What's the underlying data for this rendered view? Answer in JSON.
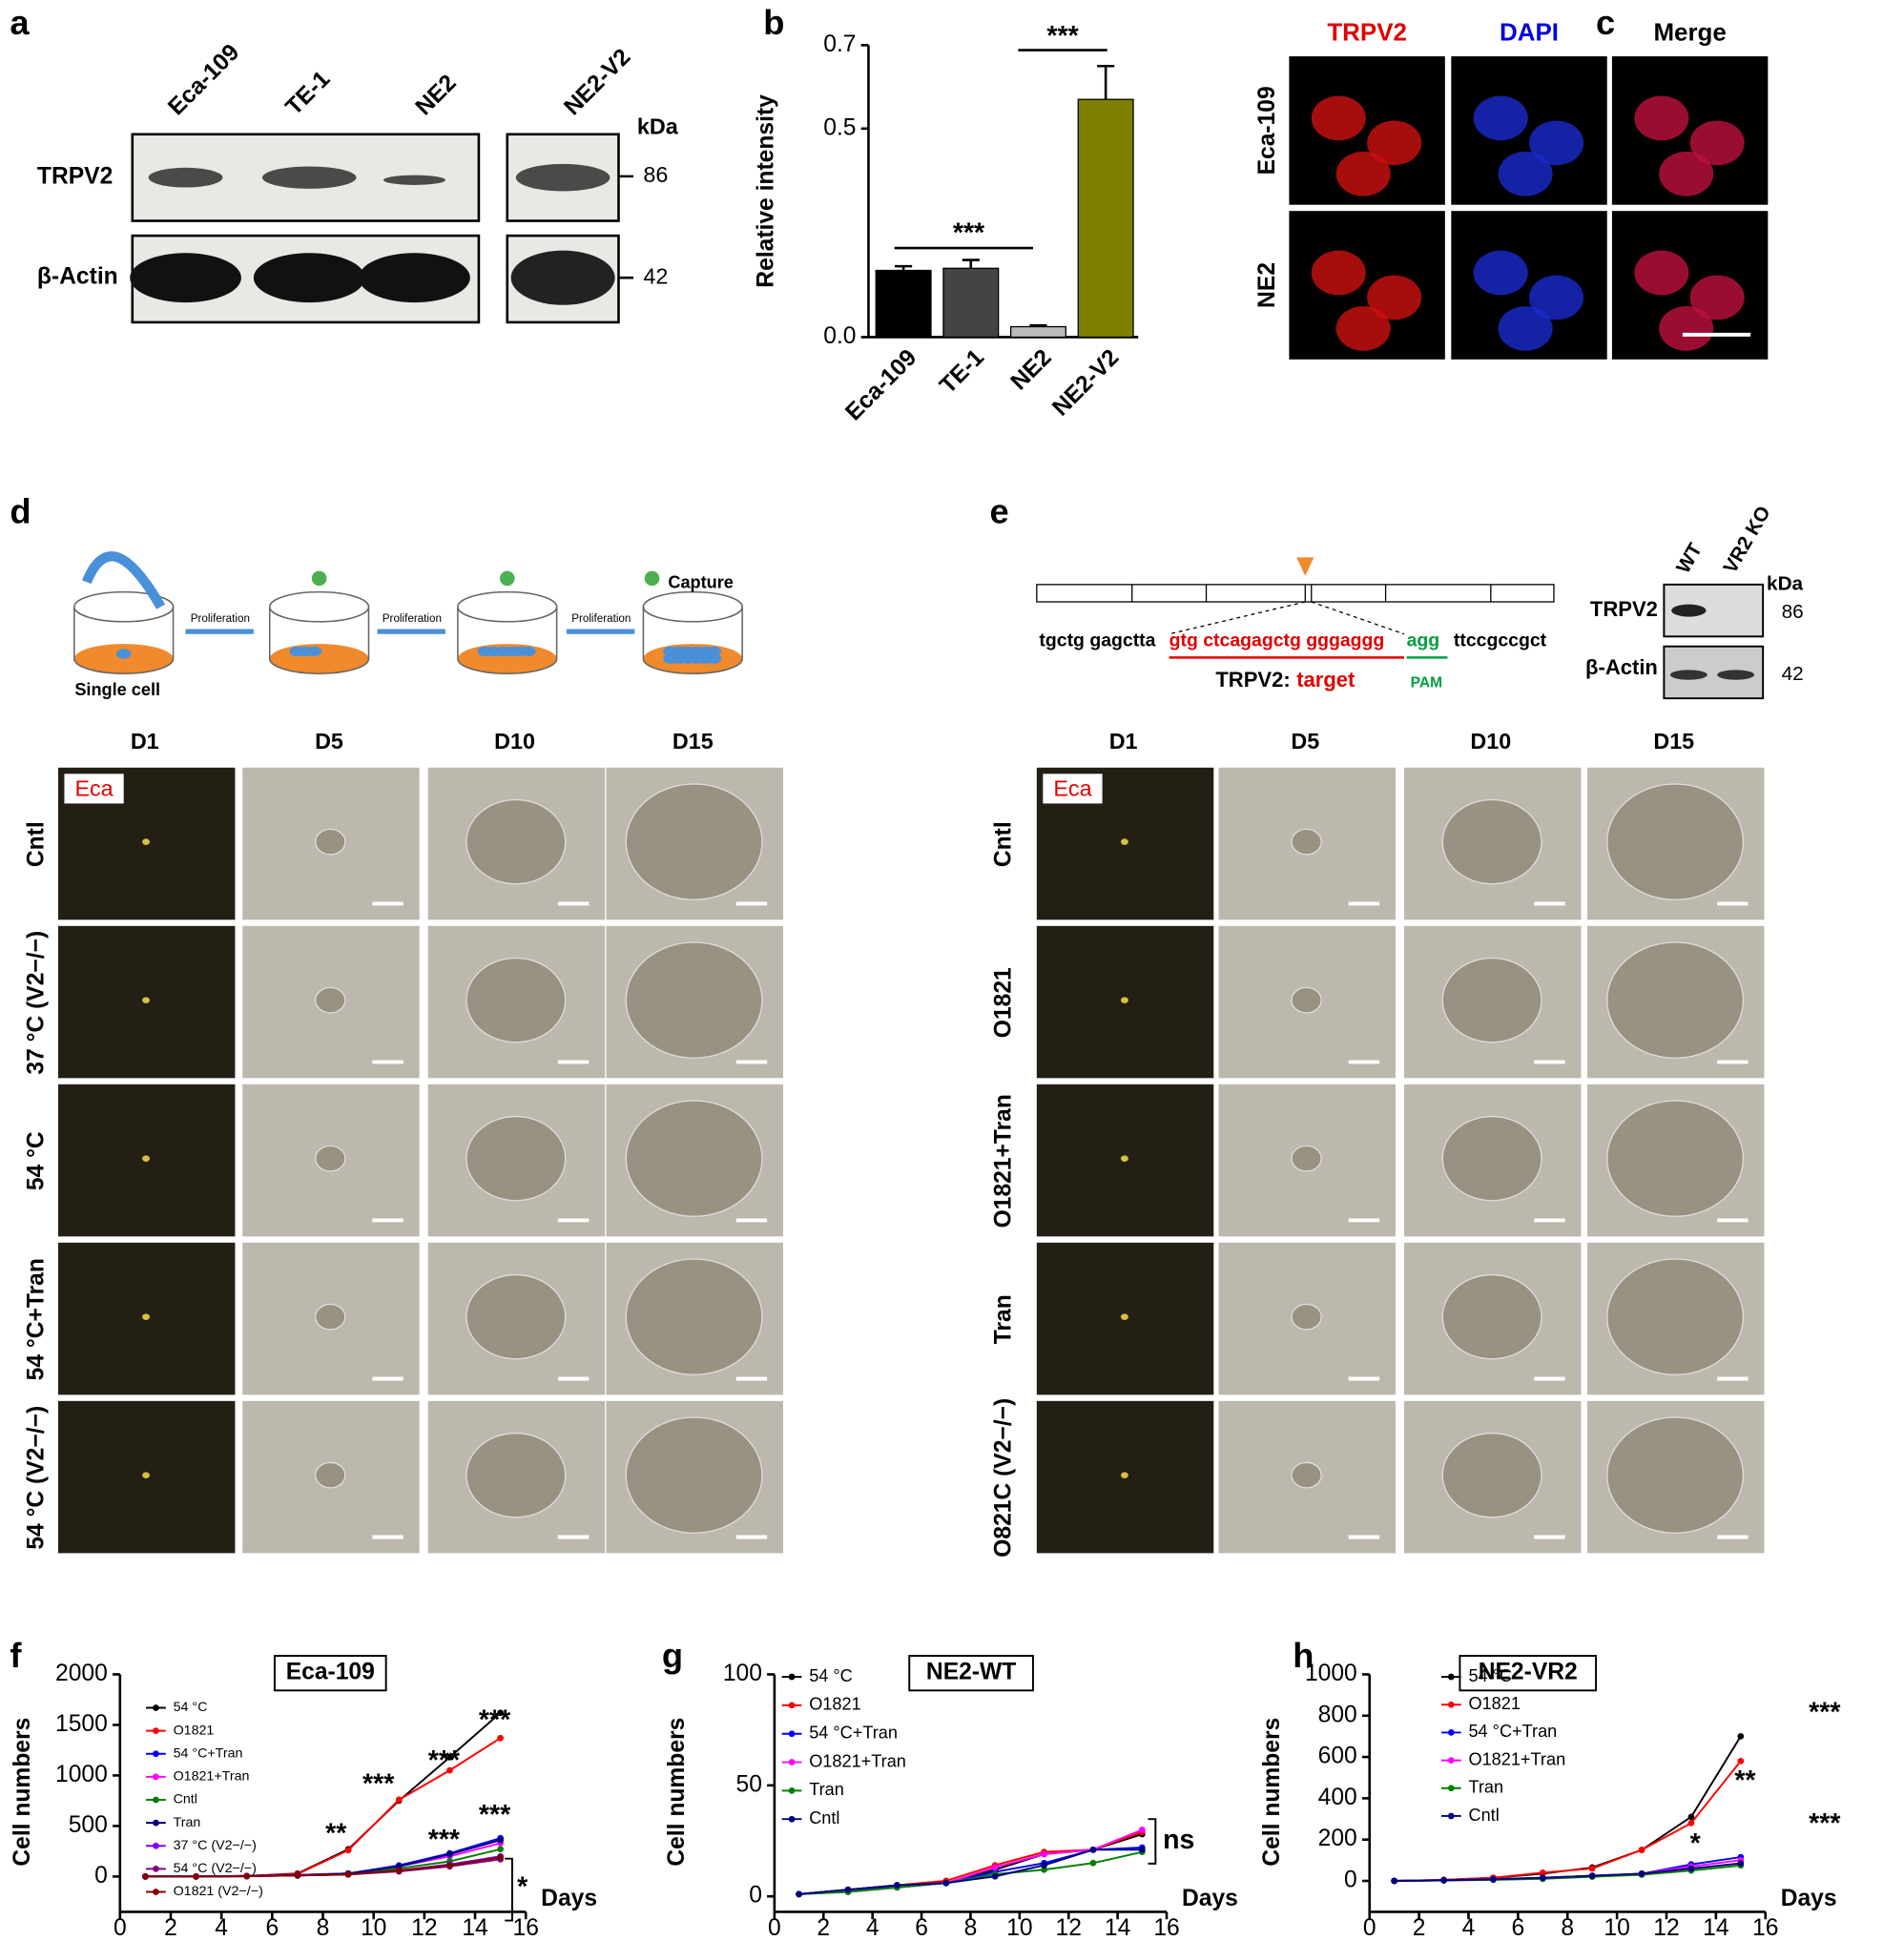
{
  "panel_labels": [
    "a",
    "b",
    "c",
    "d",
    "e",
    "f",
    "g",
    "h"
  ],
  "panel_a": {
    "lanes": [
      "Eca-109",
      "TE-1",
      "NE2",
      "NE2-V2"
    ],
    "rows": [
      "TRPV2",
      "β-Actin"
    ],
    "unit": "kDa",
    "markers": [
      86,
      42
    ]
  },
  "panel_c": {
    "columns": [
      "TRPV2",
      "DAPI",
      "Merge"
    ],
    "rows": [
      "Eca-109",
      "NE2"
    ]
  },
  "panel_d": {
    "steps": [
      "Proliferation",
      "Proliferation",
      "Proliferation"
    ],
    "capture": "Capture",
    "start": "Single cell",
    "days": [
      "D1",
      "D5",
      "D10",
      "D15"
    ],
    "tag": "Eca",
    "rows": [
      "Cntl",
      "37 °C (V2−/−)",
      "54 °C",
      "54 °C+Tran",
      "54 °C (V2−/−)"
    ]
  },
  "panel_e": {
    "seq_left": "tgctg gagctta",
    "seq_target": "gtg ctcagagctg gggaggg",
    "seq_pam": "agg",
    "seq_right": "ttccgccgct",
    "target_prefix": "TRPV2:",
    "target_word": "target",
    "pam": "PAM",
    "lanes": [
      "WT",
      "VR2 KO"
    ],
    "unit": "kDa",
    "rows": [
      "TRPV2",
      "β-Actin"
    ],
    "markers": [
      86,
      42
    ],
    "days": [
      "D1",
      "D5",
      "D10",
      "D15"
    ],
    "tag": "Eca",
    "conditions": [
      "Cntl",
      "O1821",
      "O1821+Tran",
      "Tran",
      "O821C (V2−/−)"
    ]
  },
  "chart_data": [
    {
      "type": "bar",
      "ylabel": "Relative intensity",
      "categories": [
        "Eca-109",
        "TE-1",
        "NE2",
        "NE2-V2"
      ],
      "values": [
        0.16,
        0.165,
        0.025,
        0.57
      ],
      "errors": [
        0.01,
        0.02,
        0.003,
        0.08
      ],
      "colors": [
        "#000000",
        "#444444",
        "#bbbbbb",
        "#808000"
      ],
      "ylim": [
        0,
        0.7
      ],
      "yticks": [
        {
          "value": 0,
          "label": "0.0"
        },
        0.5,
        0.7
      ],
      "annotations": [
        "***",
        "***"
      ]
    },
    {
      "type": "line",
      "title": "Eca-109",
      "xlabel": "Days",
      "ylabel": "Cell numbers",
      "x": [
        1,
        3,
        5,
        7,
        9,
        11,
        13,
        15
      ],
      "xlim": [
        0,
        16
      ],
      "xticks": [
        0,
        2,
        4,
        6,
        8,
        10,
        12,
        14,
        16
      ],
      "ylim": [
        -350,
        2000
      ],
      "yticks": [
        0,
        500,
        1000,
        1500,
        2000
      ],
      "series": [
        {
          "name": "54 °C",
          "color": "#000000",
          "values": [
            0,
            0,
            5,
            30,
            270,
            750,
            1180,
            1620
          ]
        },
        {
          "name": "O1821",
          "color": "#ff0000",
          "values": [
            0,
            0,
            5,
            25,
            260,
            760,
            1050,
            1370
          ]
        },
        {
          "name": "54 °C+Tran",
          "color": "#0000ff",
          "values": [
            0,
            0,
            5,
            15,
            30,
            110,
            230,
            380
          ]
        },
        {
          "name": "O1821+Tran",
          "color": "#ff00ff",
          "values": [
            0,
            0,
            5,
            15,
            30,
            100,
            200,
            330
          ]
        },
        {
          "name": "Cntl",
          "color": "#008000",
          "values": [
            0,
            0,
            5,
            10,
            25,
            80,
            150,
            270
          ]
        },
        {
          "name": "Tran",
          "color": "#000080",
          "values": [
            0,
            0,
            5,
            15,
            30,
            100,
            220,
            360
          ]
        },
        {
          "name": "37 °C (V2−/−)",
          "color": "#8000ff",
          "values": [
            0,
            0,
            3,
            10,
            20,
            60,
            120,
            200
          ]
        },
        {
          "name": "54 °C (V2−/−)",
          "color": "#800080",
          "values": [
            0,
            0,
            3,
            10,
            20,
            50,
            100,
            170
          ]
        },
        {
          "name": "O1821 (V2−/−)",
          "color": "#800000",
          "values": [
            0,
            0,
            3,
            10,
            20,
            60,
            110,
            190
          ]
        }
      ],
      "annotations": [
        "**",
        "***",
        "***",
        "***",
        "***",
        "***",
        "*"
      ]
    },
    {
      "type": "line",
      "title": "NE2-WT",
      "xlabel": "Days",
      "ylabel": "Cell numbers",
      "x": [
        1,
        3,
        5,
        7,
        9,
        11,
        13,
        15
      ],
      "xlim": [
        0,
        16
      ],
      "xticks": [
        0,
        2,
        4,
        6,
        8,
        10,
        12,
        14,
        16
      ],
      "ylim": [
        -7,
        100
      ],
      "yticks": [
        0,
        50,
        100
      ],
      "series": [
        {
          "name": "54 °C",
          "color": "#000000",
          "values": [
            1,
            3,
            5,
            6,
            12,
            19,
            21,
            28
          ]
        },
        {
          "name": "O1821",
          "color": "#ff0000",
          "values": [
            1,
            3,
            5,
            7,
            14,
            20,
            21,
            29
          ]
        },
        {
          "name": "54 °C+Tran",
          "color": "#0000ff",
          "values": [
            1,
            3,
            4,
            6,
            11,
            15,
            21,
            22
          ]
        },
        {
          "name": "O1821+Tran",
          "color": "#ff00ff",
          "values": [
            1,
            2,
            4,
            6,
            13,
            19,
            21,
            30
          ]
        },
        {
          "name": "Tran",
          "color": "#008000",
          "values": [
            1,
            2,
            4,
            6,
            10,
            12,
            15,
            20
          ]
        },
        {
          "name": "Cntl",
          "color": "#000080",
          "values": [
            1,
            3,
            5,
            6,
            9,
            14,
            21,
            21
          ]
        }
      ],
      "annotations": [
        "ns"
      ]
    },
    {
      "type": "line",
      "title": "NE2-VR2",
      "xlabel": "Days",
      "ylabel": "Cell numbers",
      "x": [
        1,
        3,
        5,
        7,
        9,
        11,
        13,
        15
      ],
      "xlim": [
        0,
        16
      ],
      "xticks": [
        0,
        2,
        4,
        6,
        8,
        10,
        12,
        14,
        16
      ],
      "ylim": [
        -150,
        1000
      ],
      "yticks": [
        0,
        200,
        400,
        600,
        800,
        1000
      ],
      "series": [
        {
          "name": "54 °C",
          "color": "#000000",
          "values": [
            0,
            5,
            15,
            35,
            65,
            150,
            310,
            700
          ]
        },
        {
          "name": "O1821",
          "color": "#ff0000",
          "values": [
            0,
            5,
            15,
            40,
            60,
            150,
            280,
            580
          ]
        },
        {
          "name": "54 °C+Tran",
          "color": "#0000ff",
          "values": [
            0,
            3,
            8,
            15,
            25,
            35,
            80,
            115
          ]
        },
        {
          "name": "O1821+Tran",
          "color": "#ff00ff",
          "values": [
            0,
            3,
            8,
            15,
            25,
            35,
            70,
            100
          ]
        },
        {
          "name": "Tran",
          "color": "#008000",
          "values": [
            0,
            2,
            5,
            10,
            20,
            30,
            50,
            75
          ]
        },
        {
          "name": "Cntl",
          "color": "#000080",
          "values": [
            0,
            3,
            8,
            15,
            25,
            35,
            60,
            85
          ]
        }
      ],
      "annotations": [
        "***",
        "***",
        "**",
        "*"
      ]
    }
  ]
}
